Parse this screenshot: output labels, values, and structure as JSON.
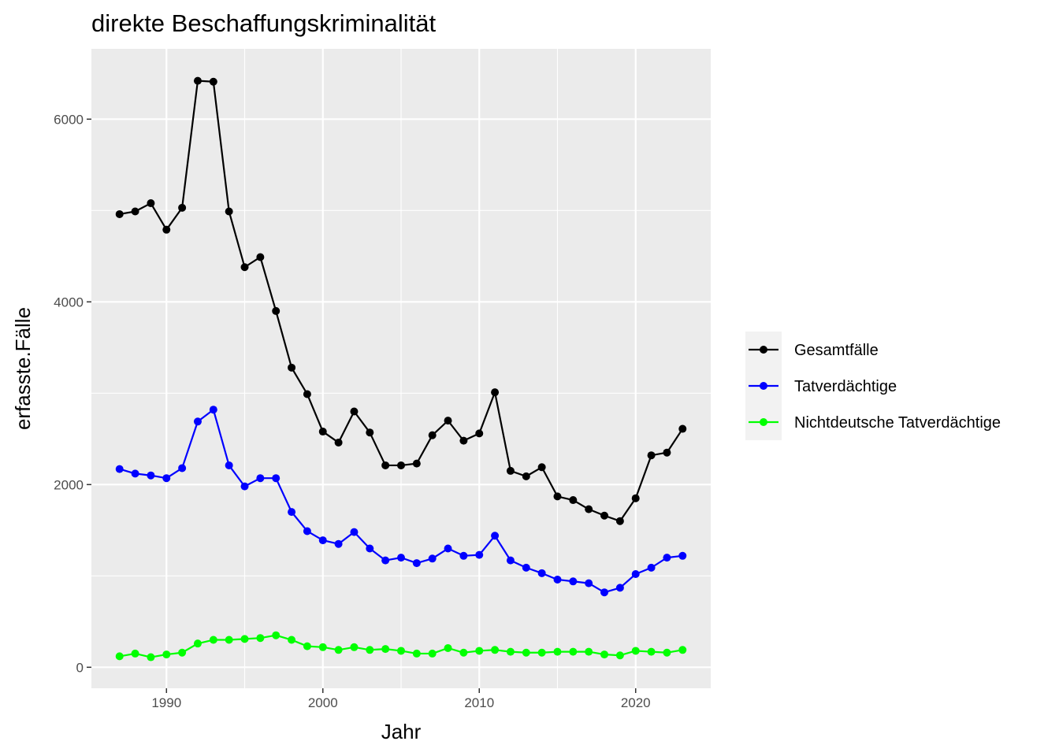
{
  "chart_data": {
    "type": "line",
    "title": "direkte Beschaffungskriminalität",
    "xlabel": "Jahr",
    "ylabel": "erfasste.Fälle",
    "xlim": [
      1985.2,
      2024.8
    ],
    "ylim": [
      -230,
      6770
    ],
    "x_ticks": [
      1990,
      2000,
      2010,
      2020
    ],
    "x_tick_labels": [
      "1990",
      "2000",
      "2010",
      "2020"
    ],
    "y_ticks": [
      0,
      2000,
      4000,
      6000
    ],
    "y_tick_labels": [
      "0",
      "2000",
      "4000",
      "6000"
    ],
    "grid": true,
    "legend_position": "right",
    "x": [
      1987,
      1988,
      1989,
      1990,
      1991,
      1992,
      1993,
      1994,
      1995,
      1996,
      1997,
      1998,
      1999,
      2000,
      2001,
      2002,
      2003,
      2004,
      2005,
      2006,
      2007,
      2008,
      2009,
      2010,
      2011,
      2012,
      2013,
      2014,
      2015,
      2016,
      2017,
      2018,
      2019,
      2020,
      2021,
      2022,
      2023
    ],
    "series": [
      {
        "name": "Gesamtfälle",
        "color": "#000000",
        "values": [
          4960,
          4990,
          5080,
          4790,
          5030,
          6420,
          6410,
          4990,
          4380,
          4490,
          3900,
          3280,
          2990,
          2580,
          2460,
          2800,
          2570,
          2210,
          2210,
          2230,
          2540,
          2700,
          2480,
          2560,
          3010,
          2150,
          2090,
          2190,
          1870,
          1830,
          1730,
          1660,
          1600,
          1850,
          2320,
          2350,
          2610
        ]
      },
      {
        "name": "Tatverdächtige",
        "color": "#0000ff",
        "values": [
          2170,
          2120,
          2100,
          2070,
          2180,
          2690,
          2820,
          2210,
          1980,
          2070,
          2070,
          1700,
          1490,
          1390,
          1350,
          1480,
          1300,
          1170,
          1200,
          1140,
          1190,
          1300,
          1220,
          1230,
          1440,
          1170,
          1090,
          1030,
          960,
          940,
          920,
          820,
          870,
          1020,
          1090,
          1200,
          1220
        ]
      },
      {
        "name": "Nichtdeutsche Tatverdächtige",
        "color": "#00ff00",
        "values": [
          120,
          150,
          110,
          140,
          160,
          260,
          300,
          300,
          310,
          320,
          350,
          300,
          230,
          220,
          190,
          220,
          190,
          200,
          180,
          150,
          150,
          210,
          160,
          180,
          190,
          170,
          160,
          160,
          170,
          170,
          170,
          140,
          130,
          180,
          170,
          160,
          190
        ]
      }
    ]
  }
}
